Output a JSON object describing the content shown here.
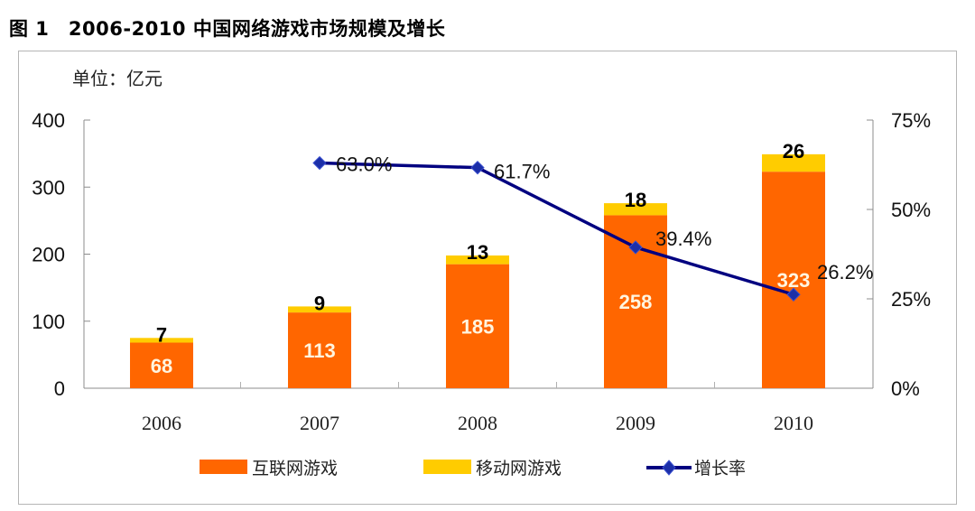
{
  "figure": {
    "title": "图 1　2006-2010 中国网络游戏市场规模及增长"
  },
  "chart_data": {
    "type": "bar",
    "stacked": true,
    "title": "2006-2010 中国网络游戏市场规模及增长",
    "unit_label": "单位：亿元",
    "categories": [
      "2006",
      "2007",
      "2008",
      "2009",
      "2010"
    ],
    "series": [
      {
        "name": "互联网游戏",
        "type": "bar",
        "axis": "left",
        "color": "#FF6600",
        "values": [
          68,
          113,
          185,
          258,
          323
        ]
      },
      {
        "name": "移动网游戏",
        "type": "bar",
        "axis": "left",
        "color": "#FFCC00",
        "values": [
          7,
          9,
          13,
          18,
          26
        ]
      },
      {
        "name": "增长率",
        "type": "line",
        "axis": "right",
        "color": "#000080",
        "marker": "diamond",
        "marker_color": "#1C2FA8",
        "values": [
          null,
          63.0,
          61.7,
          39.4,
          26.2
        ],
        "labels": [
          "",
          "63.0%",
          "61.7%",
          "39.4%",
          "26.2%"
        ]
      }
    ],
    "left_axis": {
      "min": 0,
      "max": 400,
      "ticks": [
        0,
        100,
        200,
        300,
        400
      ],
      "tick_labels": [
        "0",
        "100",
        "200",
        "300",
        "400"
      ]
    },
    "right_axis": {
      "min": 0,
      "max": 75,
      "ticks": [
        0,
        25,
        50,
        75
      ],
      "tick_labels": [
        "0%",
        "25%",
        "50%",
        "75%"
      ]
    },
    "xlabel": "",
    "ylabel": "",
    "grid": false,
    "legend": {
      "position": "bottom",
      "entries": [
        {
          "label": "互联网游戏",
          "kind": "bar",
          "color": "#FF6600"
        },
        {
          "label": "移动网游戏",
          "kind": "bar",
          "color": "#FFCC00"
        },
        {
          "label": "增长率",
          "kind": "line",
          "color": "#000080"
        }
      ]
    }
  }
}
